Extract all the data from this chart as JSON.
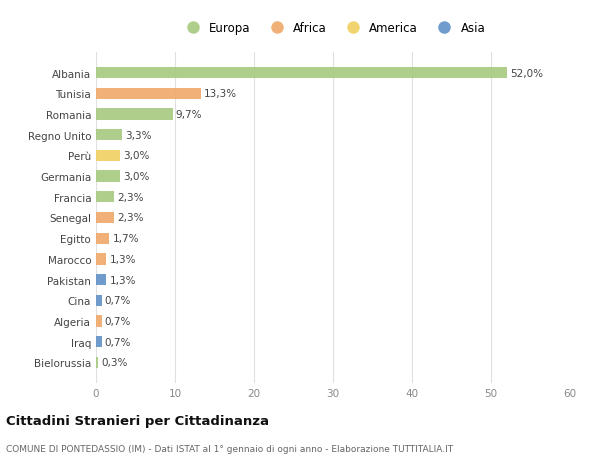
{
  "countries": [
    "Albania",
    "Tunisia",
    "Romania",
    "Regno Unito",
    "Perù",
    "Germania",
    "Francia",
    "Senegal",
    "Egitto",
    "Marocco",
    "Pakistan",
    "Cina",
    "Algeria",
    "Iraq",
    "Bielorussia"
  ],
  "values": [
    52.0,
    13.3,
    9.7,
    3.3,
    3.0,
    3.0,
    2.3,
    2.3,
    1.7,
    1.3,
    1.3,
    0.7,
    0.7,
    0.7,
    0.3
  ],
  "labels": [
    "52,0%",
    "13,3%",
    "9,7%",
    "3,3%",
    "3,0%",
    "3,0%",
    "2,3%",
    "2,3%",
    "1,7%",
    "1,3%",
    "1,3%",
    "0,7%",
    "0,7%",
    "0,7%",
    "0,3%"
  ],
  "continents": [
    "Europa",
    "Africa",
    "Europa",
    "Europa",
    "America",
    "Europa",
    "Europa",
    "Africa",
    "Africa",
    "Africa",
    "Asia",
    "Asia",
    "Africa",
    "Asia",
    "Europa"
  ],
  "colors": {
    "Europa": "#a8c97f",
    "Africa": "#f0a868",
    "America": "#f0d060",
    "Asia": "#6090c8"
  },
  "legend_order": [
    "Europa",
    "Africa",
    "America",
    "Asia"
  ],
  "title": "Cittadini Stranieri per Cittadinanza",
  "subtitle": "COMUNE DI PONTEDASSIO (IM) - Dati ISTAT al 1° gennaio di ogni anno - Elaborazione TUTTITALIA.IT",
  "xlim": [
    0,
    60
  ],
  "xticks": [
    0,
    10,
    20,
    30,
    40,
    50,
    60
  ],
  "background_color": "#ffffff",
  "grid_color": "#e0e0e0"
}
